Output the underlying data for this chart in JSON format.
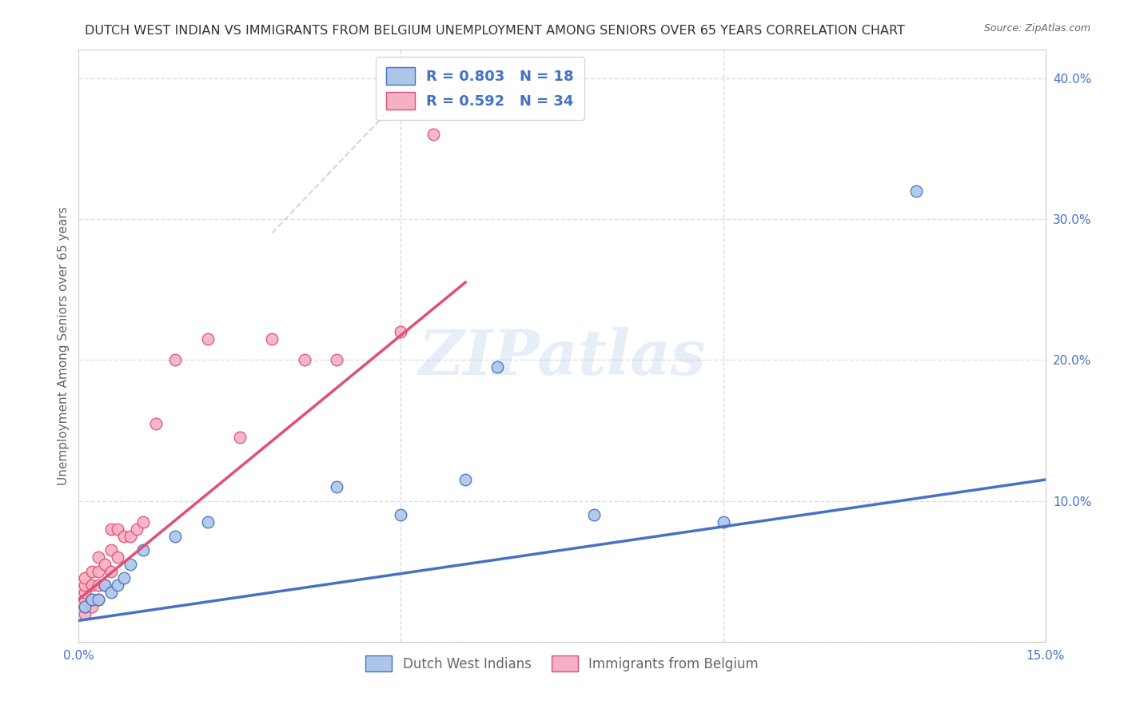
{
  "title": "DUTCH WEST INDIAN VS IMMIGRANTS FROM BELGIUM UNEMPLOYMENT AMONG SENIORS OVER 65 YEARS CORRELATION CHART",
  "source": "Source: ZipAtlas.com",
  "ylabel": "Unemployment Among Seniors over 65 years",
  "xlim": [
    0.0,
    0.15
  ],
  "ylim": [
    0.0,
    0.42
  ],
  "yticks_right": [
    0.0,
    0.1,
    0.2,
    0.3,
    0.4
  ],
  "ytick_labels_right": [
    "",
    "10.0%",
    "20.0%",
    "30.0%",
    "40.0%"
  ],
  "xtick_positions": [
    0.0,
    0.05,
    0.1,
    0.15
  ],
  "xtick_labels": [
    "0.0%",
    "",
    "",
    "15.0%"
  ],
  "blue_R": 0.803,
  "blue_N": 18,
  "pink_R": 0.592,
  "pink_N": 34,
  "blue_scatter_x": [
    0.001,
    0.002,
    0.003,
    0.004,
    0.005,
    0.006,
    0.007,
    0.008,
    0.01,
    0.015,
    0.02,
    0.04,
    0.05,
    0.06,
    0.065,
    0.08,
    0.1,
    0.13
  ],
  "blue_scatter_y": [
    0.025,
    0.03,
    0.03,
    0.04,
    0.035,
    0.04,
    0.045,
    0.055,
    0.065,
    0.075,
    0.085,
    0.11,
    0.09,
    0.115,
    0.195,
    0.09,
    0.085,
    0.32
  ],
  "pink_scatter_x": [
    0.001,
    0.001,
    0.001,
    0.001,
    0.001,
    0.001,
    0.002,
    0.002,
    0.002,
    0.002,
    0.003,
    0.003,
    0.003,
    0.003,
    0.004,
    0.004,
    0.005,
    0.005,
    0.005,
    0.006,
    0.006,
    0.007,
    0.008,
    0.009,
    0.01,
    0.012,
    0.015,
    0.02,
    0.025,
    0.03,
    0.035,
    0.04,
    0.05,
    0.055
  ],
  "pink_scatter_y": [
    0.02,
    0.025,
    0.03,
    0.035,
    0.04,
    0.045,
    0.025,
    0.03,
    0.04,
    0.05,
    0.03,
    0.04,
    0.05,
    0.06,
    0.04,
    0.055,
    0.05,
    0.065,
    0.08,
    0.06,
    0.08,
    0.075,
    0.075,
    0.08,
    0.085,
    0.155,
    0.2,
    0.215,
    0.145,
    0.215,
    0.2,
    0.2,
    0.22,
    0.36
  ],
  "blue_line_x": [
    0.0,
    0.15
  ],
  "blue_line_y": [
    0.015,
    0.115
  ],
  "pink_line_x": [
    0.0,
    0.06
  ],
  "pink_line_y": [
    0.03,
    0.255
  ],
  "diag_line_x": [
    0.03,
    0.055
  ],
  "diag_line_y": [
    0.29,
    0.41
  ],
  "blue_color": "#adc6e8",
  "blue_line_color": "#4472c4",
  "pink_color": "#f4b0c4",
  "pink_line_color": "#e05070",
  "diag_color": "#cccccc",
  "watermark": "ZIPatlas",
  "background_color": "#ffffff",
  "grid_color": "#dddddd",
  "title_color": "#333333",
  "axis_label_color": "#666666",
  "marker_size": 110,
  "legend_label_blue": "Dutch West Indians",
  "legend_label_pink": "Immigrants from Belgium"
}
